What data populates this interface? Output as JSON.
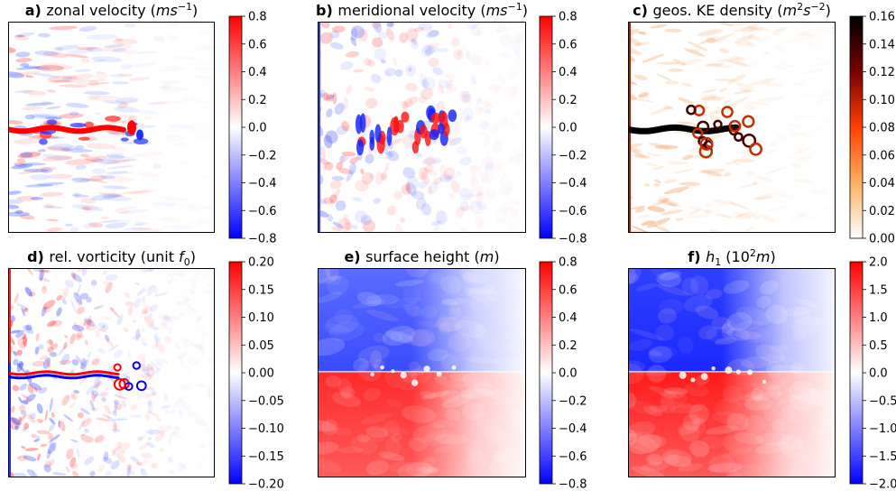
{
  "chart_data": [
    {
      "type": "heatmap",
      "panel_letter": "a)",
      "title_main": "zonal velocity (",
      "title_math": "ms",
      "title_sup": "−1",
      "title_end": ")",
      "colormap": "bwr",
      "colorbar": {
        "range": [
          -0.8,
          0.8
        ],
        "ticks": [
          "0.8",
          "0.6",
          "0.4",
          "0.2",
          "0.0",
          "−0.2",
          "−0.4",
          "−0.6",
          "−0.8"
        ]
      },
      "field": "jet"
    },
    {
      "type": "heatmap",
      "panel_letter": "b)",
      "title_main": "meridional velocity (",
      "title_math": "ms",
      "title_sup": "−1",
      "title_end": ")",
      "colormap": "bwr",
      "colorbar": {
        "range": [
          -0.8,
          0.8
        ],
        "ticks": [
          "0.8",
          "0.6",
          "0.4",
          "0.2",
          "0.0",
          "−0.2",
          "−0.4",
          "−0.6",
          "−0.8"
        ]
      },
      "field": "eddies"
    },
    {
      "type": "heatmap",
      "panel_letter": "c)",
      "title_main": "geos. KE density (",
      "title_math": "m",
      "title_sup": "2",
      "title_math2": "s",
      "title_sup2": "−2",
      "title_end": ")",
      "colormap": "gist_heat_r",
      "colorbar": {
        "range": [
          0.0,
          0.16
        ],
        "ticks": [
          "0.16",
          "0.14",
          "0.12",
          "0.10",
          "0.08",
          "0.06",
          "0.04",
          "0.02",
          "0.00"
        ]
      },
      "field": "ke"
    },
    {
      "type": "heatmap",
      "panel_letter": "d)",
      "title_main": "rel. vorticity (unit ",
      "title_math": "f",
      "title_sub": "0",
      "title_end": ")",
      "colormap": "bwr",
      "colorbar": {
        "range": [
          -0.2,
          0.2
        ],
        "ticks": [
          "0.20",
          "0.15",
          "0.10",
          "0.05",
          "0.00",
          "−0.05",
          "−0.10",
          "−0.15",
          "−0.20"
        ]
      },
      "field": "vorticity"
    },
    {
      "type": "heatmap",
      "panel_letter": "e)",
      "title_main": "surface height (",
      "title_math": "m",
      "title_end": ")",
      "colormap": "bwr",
      "colorbar": {
        "range": [
          -0.8,
          0.8
        ],
        "ticks": [
          "0.8",
          "0.6",
          "0.4",
          "0.2",
          "0.0",
          "−0.2",
          "−0.4",
          "−0.6",
          "−0.8"
        ]
      },
      "field": "height"
    },
    {
      "type": "heatmap",
      "panel_letter": "f)",
      "title_main": "h",
      "title_sub": "1",
      "title_pre2": " (10",
      "title_sup": "2",
      "title_math2": "m",
      "title_end": ")",
      "title_math_italic_main": true,
      "colormap": "bwr",
      "colorbar": {
        "range": [
          -2.0,
          2.0
        ],
        "ticks": [
          "2.0",
          "1.5",
          "1.0",
          "0.5",
          "0.0",
          "−0.5",
          "−1.0",
          "−1.5",
          "−2.0"
        ]
      },
      "field": "thickness"
    }
  ]
}
